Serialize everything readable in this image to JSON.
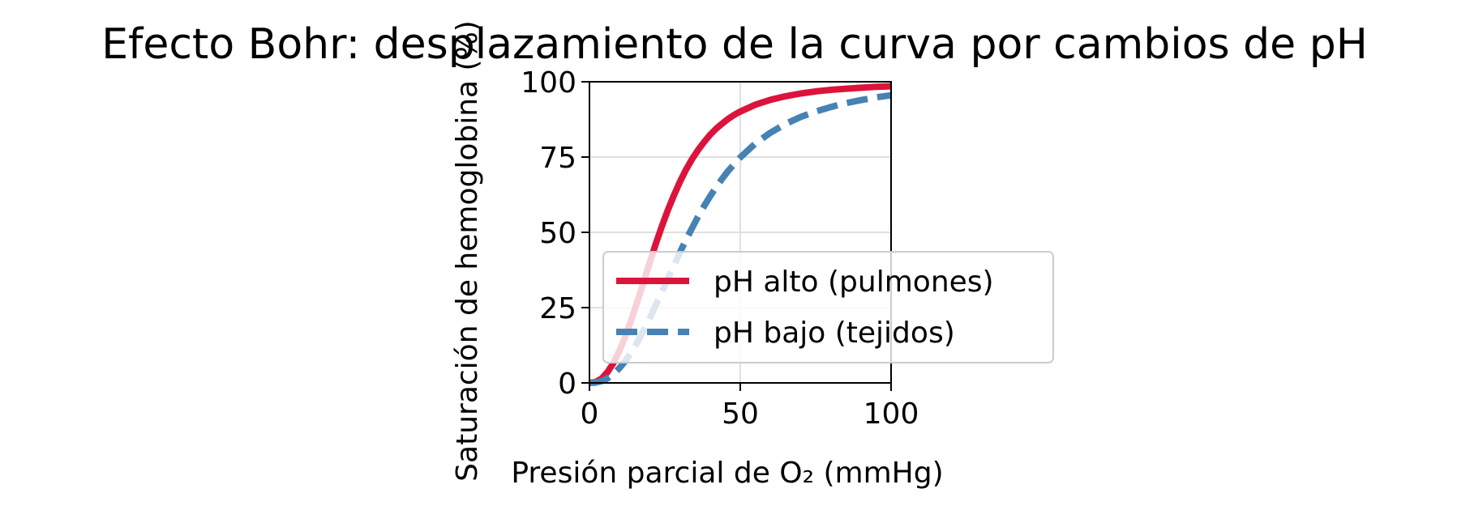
{
  "chart_data": {
    "type": "line",
    "title": "Efecto Bohr: desplazamiento de la curva por cambios de pH",
    "xlabel": "Presión parcial de O₂ (mmHg)",
    "ylabel": "Saturación de hemoglobina (%)",
    "xlim": [
      0,
      100
    ],
    "ylim": [
      0,
      100
    ],
    "xticks": [
      0,
      50,
      100
    ],
    "yticks": [
      0,
      25,
      50,
      75,
      100
    ],
    "grid": true,
    "legend_position": "lower-right",
    "series": [
      {
        "name": "pH alto (pulmones)",
        "color": "#dc143c",
        "style": "solid",
        "x": [
          0,
          2,
          4,
          6,
          8,
          10,
          12,
          14,
          16,
          18,
          20,
          22,
          24,
          26,
          28,
          30,
          32,
          34,
          36,
          38,
          40,
          42,
          44,
          46,
          48,
          50,
          55,
          60,
          65,
          70,
          75,
          80,
          85,
          90,
          95,
          100
        ],
        "y": [
          0,
          0.3,
          1.4,
          3.6,
          6.7,
          10.8,
          15.7,
          21.3,
          27.4,
          33.7,
          40.0,
          46.2,
          52.0,
          57.4,
          62.3,
          66.8,
          70.8,
          74.3,
          77.3,
          80.0,
          82.4,
          84.4,
          86.1,
          87.7,
          89.0,
          90.1,
          92.4,
          94.0,
          95.2,
          96.1,
          96.8,
          97.3,
          97.7,
          98.0,
          98.3,
          98.5
        ]
      },
      {
        "name": "pH bajo (tejidos)",
        "color": "#4682b4",
        "style": "dashed",
        "x": [
          0,
          2,
          4,
          6,
          8,
          10,
          12,
          14,
          16,
          18,
          20,
          22,
          24,
          26,
          28,
          30,
          32,
          34,
          36,
          38,
          40,
          42,
          44,
          46,
          48,
          50,
          55,
          60,
          65,
          70,
          75,
          80,
          85,
          90,
          95,
          100
        ],
        "y": [
          0,
          0.1,
          0.6,
          1.5,
          3.0,
          5.0,
          7.4,
          10.4,
          13.7,
          17.5,
          21.5,
          25.8,
          30.2,
          34.6,
          39.0,
          43.3,
          47.5,
          51.4,
          55.2,
          58.7,
          62.0,
          65.0,
          67.8,
          70.4,
          72.7,
          74.9,
          79.5,
          83.1,
          86.0,
          88.3,
          90.1,
          91.6,
          92.9,
          93.9,
          94.8,
          95.5
        ]
      }
    ]
  }
}
